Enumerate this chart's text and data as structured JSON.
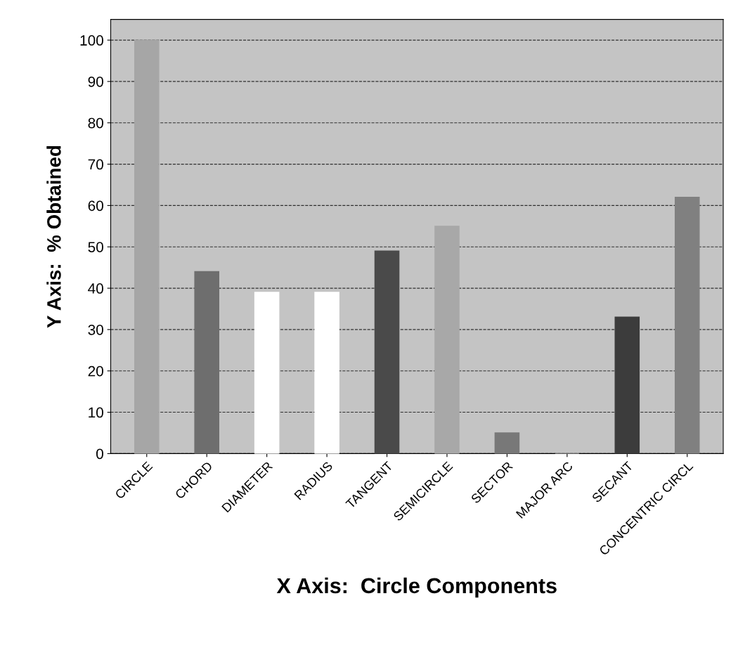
{
  "chart_data": {
    "type": "bar",
    "xlabel": "X Axis:  Circle Components",
    "ylabel": "Y Axis:  % Obtained",
    "categories": [
      "CIRCLE",
      "CHORD",
      "DIAMETER",
      "RADIUS",
      "TANGENT",
      "SEMICIRCLE",
      "SECTOR",
      "MAJOR ARC",
      "SECANT",
      "CONCENTRIC CIRCL"
    ],
    "values": [
      100,
      44,
      39,
      39,
      49,
      55,
      5,
      0,
      33,
      62
    ],
    "colors": [
      "#a6a6a6",
      "#6e6e6e",
      "#ffffff",
      "#ffffff",
      "#4a4a4a",
      "#a8a8a8",
      "#787878",
      "#c8c8c8",
      "#3c3c3c",
      "#808080"
    ],
    "ylim": [
      0,
      105
    ],
    "yticks": [
      0,
      10,
      20,
      30,
      40,
      50,
      60,
      70,
      80,
      90,
      100
    ],
    "grid": "y"
  }
}
